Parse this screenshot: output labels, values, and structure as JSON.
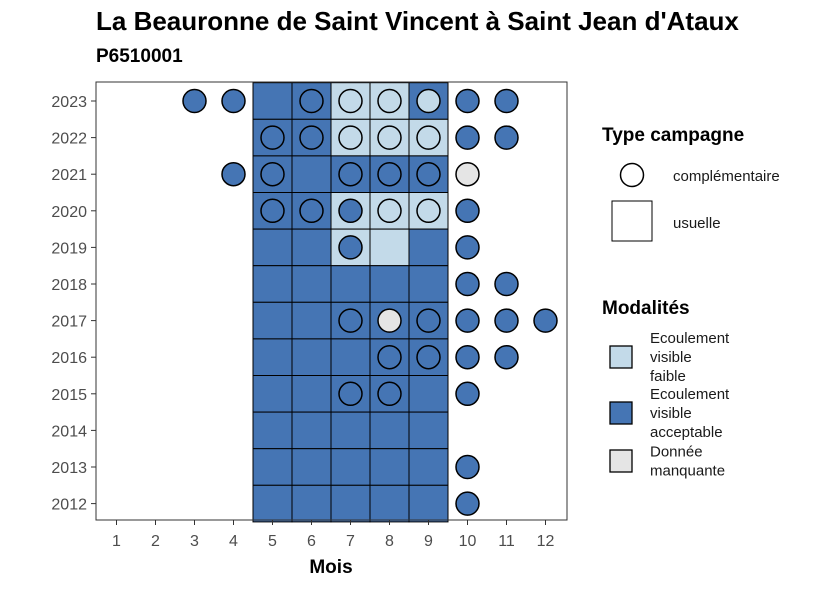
{
  "chart_data": {
    "type": "heatmap",
    "title": "La Beauronne de Saint Vincent à Saint Jean d'Ataux",
    "subtitle": "P6510001",
    "xlabel": "Mois",
    "ylabel": "",
    "x_ticks": [
      "1",
      "2",
      "3",
      "4",
      "5",
      "6",
      "7",
      "8",
      "9",
      "10",
      "11",
      "12"
    ],
    "y_ticks": [
      "2012",
      "2013",
      "2014",
      "2015",
      "2016",
      "2017",
      "2018",
      "2019",
      "2020",
      "2021",
      "2022",
      "2023"
    ],
    "colors": {
      "faible": "#c3dae9",
      "acceptable": "#4575b4",
      "manquante": "#e5e5e5"
    },
    "usuelle": [
      {
        "year": 2023,
        "month": 5,
        "modalite": "acceptable"
      },
      {
        "year": 2023,
        "month": 6,
        "modalite": "acceptable"
      },
      {
        "year": 2023,
        "month": 7,
        "modalite": "faible"
      },
      {
        "year": 2023,
        "month": 8,
        "modalite": "faible"
      },
      {
        "year": 2023,
        "month": 9,
        "modalite": "acceptable"
      },
      {
        "year": 2022,
        "month": 5,
        "modalite": "acceptable"
      },
      {
        "year": 2022,
        "month": 6,
        "modalite": "acceptable"
      },
      {
        "year": 2022,
        "month": 7,
        "modalite": "faible"
      },
      {
        "year": 2022,
        "month": 8,
        "modalite": "faible"
      },
      {
        "year": 2022,
        "month": 9,
        "modalite": "faible"
      },
      {
        "year": 2021,
        "month": 5,
        "modalite": "acceptable"
      },
      {
        "year": 2021,
        "month": 6,
        "modalite": "acceptable"
      },
      {
        "year": 2021,
        "month": 7,
        "modalite": "acceptable"
      },
      {
        "year": 2021,
        "month": 8,
        "modalite": "acceptable"
      },
      {
        "year": 2021,
        "month": 9,
        "modalite": "acceptable"
      },
      {
        "year": 2020,
        "month": 5,
        "modalite": "acceptable"
      },
      {
        "year": 2020,
        "month": 6,
        "modalite": "acceptable"
      },
      {
        "year": 2020,
        "month": 7,
        "modalite": "faible"
      },
      {
        "year": 2020,
        "month": 8,
        "modalite": "faible"
      },
      {
        "year": 2020,
        "month": 9,
        "modalite": "faible"
      },
      {
        "year": 2019,
        "month": 5,
        "modalite": "acceptable"
      },
      {
        "year": 2019,
        "month": 6,
        "modalite": "acceptable"
      },
      {
        "year": 2019,
        "month": 7,
        "modalite": "faible"
      },
      {
        "year": 2019,
        "month": 8,
        "modalite": "faible"
      },
      {
        "year": 2019,
        "month": 9,
        "modalite": "acceptable"
      },
      {
        "year": 2018,
        "month": 5,
        "modalite": "acceptable"
      },
      {
        "year": 2018,
        "month": 6,
        "modalite": "acceptable"
      },
      {
        "year": 2018,
        "month": 7,
        "modalite": "acceptable"
      },
      {
        "year": 2018,
        "month": 8,
        "modalite": "acceptable"
      },
      {
        "year": 2018,
        "month": 9,
        "modalite": "acceptable"
      },
      {
        "year": 2017,
        "month": 5,
        "modalite": "acceptable"
      },
      {
        "year": 2017,
        "month": 6,
        "modalite": "acceptable"
      },
      {
        "year": 2017,
        "month": 7,
        "modalite": "acceptable"
      },
      {
        "year": 2017,
        "month": 8,
        "modalite": "acceptable"
      },
      {
        "year": 2017,
        "month": 9,
        "modalite": "acceptable"
      },
      {
        "year": 2016,
        "month": 5,
        "modalite": "acceptable"
      },
      {
        "year": 2016,
        "month": 6,
        "modalite": "acceptable"
      },
      {
        "year": 2016,
        "month": 7,
        "modalite": "acceptable"
      },
      {
        "year": 2016,
        "month": 8,
        "modalite": "acceptable"
      },
      {
        "year": 2016,
        "month": 9,
        "modalite": "acceptable"
      },
      {
        "year": 2015,
        "month": 5,
        "modalite": "acceptable"
      },
      {
        "year": 2015,
        "month": 6,
        "modalite": "acceptable"
      },
      {
        "year": 2015,
        "month": 7,
        "modalite": "acceptable"
      },
      {
        "year": 2015,
        "month": 8,
        "modalite": "acceptable"
      },
      {
        "year": 2015,
        "month": 9,
        "modalite": "acceptable"
      },
      {
        "year": 2014,
        "month": 5,
        "modalite": "acceptable"
      },
      {
        "year": 2014,
        "month": 6,
        "modalite": "acceptable"
      },
      {
        "year": 2014,
        "month": 7,
        "modalite": "acceptable"
      },
      {
        "year": 2014,
        "month": 8,
        "modalite": "acceptable"
      },
      {
        "year": 2014,
        "month": 9,
        "modalite": "acceptable"
      },
      {
        "year": 2013,
        "month": 5,
        "modalite": "acceptable"
      },
      {
        "year": 2013,
        "month": 6,
        "modalite": "acceptable"
      },
      {
        "year": 2013,
        "month": 7,
        "modalite": "acceptable"
      },
      {
        "year": 2013,
        "month": 8,
        "modalite": "acceptable"
      },
      {
        "year": 2013,
        "month": 9,
        "modalite": "acceptable"
      },
      {
        "year": 2012,
        "month": 5,
        "modalite": "acceptable"
      },
      {
        "year": 2012,
        "month": 6,
        "modalite": "acceptable"
      },
      {
        "year": 2012,
        "month": 7,
        "modalite": "acceptable"
      },
      {
        "year": 2012,
        "month": 8,
        "modalite": "acceptable"
      },
      {
        "year": 2012,
        "month": 9,
        "modalite": "acceptable"
      }
    ],
    "complementaire": [
      {
        "year": 2023,
        "month": 3,
        "modalite": "acceptable"
      },
      {
        "year": 2023,
        "month": 4,
        "modalite": "acceptable"
      },
      {
        "year": 2023,
        "month": 6,
        "modalite": "acceptable"
      },
      {
        "year": 2023,
        "month": 7,
        "modalite": "faible"
      },
      {
        "year": 2023,
        "month": 8,
        "modalite": "faible"
      },
      {
        "year": 2023,
        "month": 9,
        "modalite": "faible"
      },
      {
        "year": 2023,
        "month": 10,
        "modalite": "acceptable"
      },
      {
        "year": 2023,
        "month": 11,
        "modalite": "acceptable"
      },
      {
        "year": 2022,
        "month": 5,
        "modalite": "acceptable"
      },
      {
        "year": 2022,
        "month": 6,
        "modalite": "acceptable"
      },
      {
        "year": 2022,
        "month": 7,
        "modalite": "faible"
      },
      {
        "year": 2022,
        "month": 8,
        "modalite": "faible"
      },
      {
        "year": 2022,
        "month": 9,
        "modalite": "faible"
      },
      {
        "year": 2022,
        "month": 10,
        "modalite": "acceptable"
      },
      {
        "year": 2022,
        "month": 11,
        "modalite": "acceptable"
      },
      {
        "year": 2021,
        "month": 4,
        "modalite": "acceptable"
      },
      {
        "year": 2021,
        "month": 5,
        "modalite": "acceptable"
      },
      {
        "year": 2021,
        "month": 7,
        "modalite": "acceptable"
      },
      {
        "year": 2021,
        "month": 8,
        "modalite": "acceptable"
      },
      {
        "year": 2021,
        "month": 9,
        "modalite": "acceptable"
      },
      {
        "year": 2021,
        "month": 10,
        "modalite": "manquante"
      },
      {
        "year": 2020,
        "month": 5,
        "modalite": "acceptable"
      },
      {
        "year": 2020,
        "month": 6,
        "modalite": "acceptable"
      },
      {
        "year": 2020,
        "month": 7,
        "modalite": "acceptable"
      },
      {
        "year": 2020,
        "month": 8,
        "modalite": "faible"
      },
      {
        "year": 2020,
        "month": 9,
        "modalite": "faible"
      },
      {
        "year": 2020,
        "month": 10,
        "modalite": "acceptable"
      },
      {
        "year": 2019,
        "month": 7,
        "modalite": "acceptable"
      },
      {
        "year": 2019,
        "month": 10,
        "modalite": "acceptable"
      },
      {
        "year": 2018,
        "month": 10,
        "modalite": "acceptable"
      },
      {
        "year": 2018,
        "month": 11,
        "modalite": "acceptable"
      },
      {
        "year": 2017,
        "month": 7,
        "modalite": "acceptable"
      },
      {
        "year": 2017,
        "month": 8,
        "modalite": "manquante"
      },
      {
        "year": 2017,
        "month": 9,
        "modalite": "acceptable"
      },
      {
        "year": 2017,
        "month": 10,
        "modalite": "acceptable"
      },
      {
        "year": 2017,
        "month": 11,
        "modalite": "acceptable"
      },
      {
        "year": 2017,
        "month": 12,
        "modalite": "acceptable"
      },
      {
        "year": 2016,
        "month": 8,
        "modalite": "acceptable"
      },
      {
        "year": 2016,
        "month": 9,
        "modalite": "acceptable"
      },
      {
        "year": 2016,
        "month": 10,
        "modalite": "acceptable"
      },
      {
        "year": 2016,
        "month": 11,
        "modalite": "acceptable"
      },
      {
        "year": 2015,
        "month": 7,
        "modalite": "acceptable"
      },
      {
        "year": 2015,
        "month": 8,
        "modalite": "acceptable"
      },
      {
        "year": 2015,
        "month": 10,
        "modalite": "acceptable"
      },
      {
        "year": 2013,
        "month": 10,
        "modalite": "acceptable"
      },
      {
        "year": 2012,
        "month": 10,
        "modalite": "acceptable"
      }
    ],
    "legend": {
      "type_title": "Type campagne",
      "type_items": [
        {
          "key": "complementaire",
          "label": "complémentaire"
        },
        {
          "key": "usuelle",
          "label": "usuelle"
        }
      ],
      "mod_title": "Modalités",
      "mod_items": [
        {
          "key": "faible",
          "lines": [
            "Ecoulement",
            "visible",
            "faible"
          ]
        },
        {
          "key": "acceptable",
          "lines": [
            "Ecoulement",
            "visible",
            "acceptable"
          ]
        },
        {
          "key": "manquante",
          "lines": [
            "Donnée",
            "manquante"
          ]
        }
      ]
    },
    "grid": false,
    "legend_position": "right"
  }
}
